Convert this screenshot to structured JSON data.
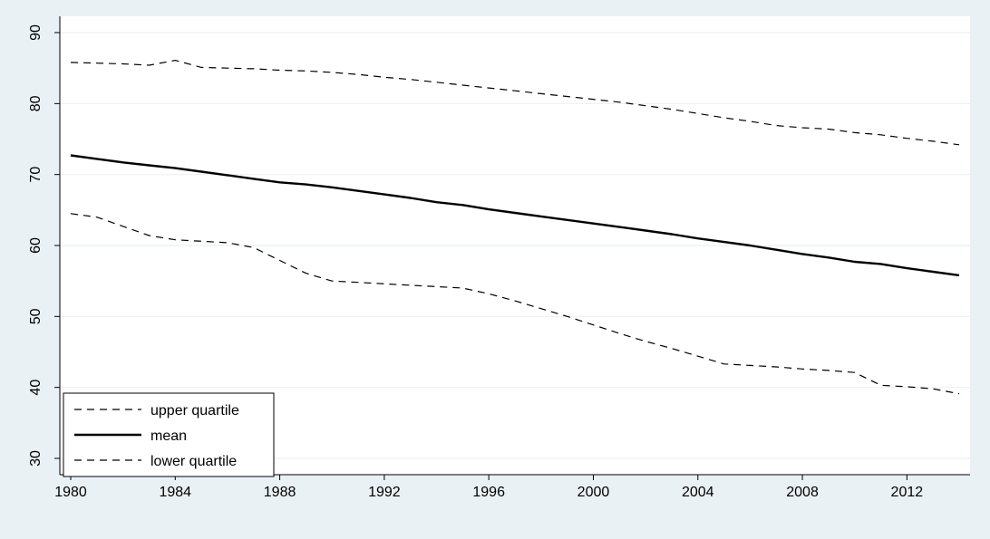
{
  "chart_data": {
    "type": "line",
    "title": "",
    "xlabel": "",
    "ylabel": "",
    "xlim": [
      1980,
      2014
    ],
    "ylim": [
      30,
      90
    ],
    "x_ticks": [
      1980,
      1984,
      1988,
      1992,
      1996,
      2000,
      2004,
      2008,
      2012
    ],
    "y_ticks": [
      30,
      40,
      50,
      60,
      70,
      80,
      90
    ],
    "grid": true,
    "legend_position": "bottom-left",
    "x": [
      1980,
      1981,
      1982,
      1983,
      1984,
      1985,
      1986,
      1987,
      1988,
      1989,
      1990,
      1991,
      1992,
      1993,
      1994,
      1995,
      1996,
      1997,
      1998,
      1999,
      2000,
      2001,
      2002,
      2003,
      2004,
      2005,
      2006,
      2007,
      2008,
      2009,
      2010,
      2011,
      2012,
      2013,
      2014
    ],
    "series": [
      {
        "name": "upper quartile",
        "style": "dashed",
        "color": "#000000",
        "values": [
          85.8,
          85.7,
          85.6,
          85.4,
          86.1,
          85.1,
          85.0,
          84.9,
          84.7,
          84.6,
          84.4,
          84.1,
          83.7,
          83.4,
          83.0,
          82.6,
          82.2,
          81.8,
          81.4,
          81.0,
          80.6,
          80.2,
          79.7,
          79.2,
          78.6,
          78.0,
          77.5,
          76.9,
          76.6,
          76.4,
          75.9,
          75.6,
          75.1,
          74.7,
          74.2
        ]
      },
      {
        "name": "mean",
        "style": "solid",
        "color": "#000000",
        "values": [
          72.7,
          72.2,
          71.7,
          71.3,
          70.9,
          70.4,
          69.9,
          69.4,
          68.9,
          68.6,
          68.2,
          67.7,
          67.2,
          66.7,
          66.1,
          65.7,
          65.1,
          64.6,
          64.1,
          63.6,
          63.1,
          62.6,
          62.1,
          61.6,
          61.0,
          60.5,
          60.0,
          59.4,
          58.8,
          58.3,
          57.7,
          57.4,
          56.8,
          56.3,
          55.8
        ]
      },
      {
        "name": "lower quartile",
        "style": "dashed",
        "color": "#000000",
        "values": [
          64.5,
          64.0,
          62.7,
          61.4,
          60.8,
          60.6,
          60.4,
          59.7,
          57.9,
          56.1,
          55.0,
          54.8,
          54.6,
          54.4,
          54.2,
          54.0,
          53.2,
          52.2,
          51.1,
          50.0,
          48.8,
          47.6,
          46.5,
          45.5,
          44.4,
          43.3,
          43.1,
          42.9,
          42.6,
          42.4,
          42.1,
          40.3,
          40.1,
          39.8,
          39.1
        ]
      }
    ]
  }
}
